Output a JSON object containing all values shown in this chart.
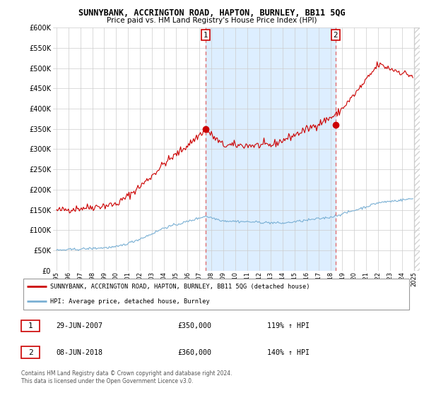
{
  "title": "SUNNYBANK, ACCRINGTON ROAD, HAPTON, BURNLEY, BB11 5QG",
  "subtitle": "Price paid vs. HM Land Registry's House Price Index (HPI)",
  "legend_label_red": "SUNNYBANK, ACCRINGTON ROAD, HAPTON, BURNLEY, BB11 5QG (detached house)",
  "legend_label_blue": "HPI: Average price, detached house, Burnley",
  "sale1_date": "29-JUN-2007",
  "sale1_price": "£350,000",
  "sale1_hpi": "119% ↑ HPI",
  "sale2_date": "08-JUN-2018",
  "sale2_price": "£360,000",
  "sale2_hpi": "140% ↑ HPI",
  "footer": "Contains HM Land Registry data © Crown copyright and database right 2024.\nThis data is licensed under the Open Government Licence v3.0.",
  "ylim": [
    0,
    600000
  ],
  "yticks": [
    0,
    50000,
    100000,
    150000,
    200000,
    250000,
    300000,
    350000,
    400000,
    450000,
    500000,
    550000,
    600000
  ],
  "sale1_x": 2007.5,
  "sale2_x": 2018.44,
  "red_color": "#cc0000",
  "blue_color": "#7ab0d4",
  "dashed_color": "#dd6666",
  "shade_color": "#ddeeff",
  "xlim_left": 1994.7,
  "xlim_right": 2025.5
}
